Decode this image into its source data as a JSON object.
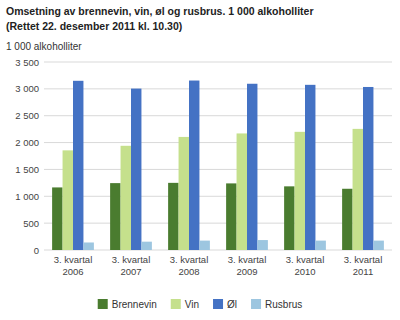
{
  "chart_data": {
    "type": "bar",
    "title": "Omsetning av brennevin, vin, øl og rusbrus. 1 000 alkoholliter",
    "subtitle": "(Rettet 22. desember 2011 kl. 10.30)",
    "ylabel": "1 000 alkoholliter",
    "categories": [
      "3. kvartal\n2006",
      "3. kvartal\n2007",
      "3. kvartal\n2008",
      "3. kvartal\n2009",
      "3. kvartal\n2010",
      "3. kvartal\n2011"
    ],
    "series": [
      {
        "name": "Brennevin",
        "color": "#4a7c2f",
        "values": [
          1165,
          1245,
          1250,
          1240,
          1185,
          1140
        ]
      },
      {
        "name": "Vin",
        "color": "#c5e08c",
        "values": [
          1855,
          1940,
          2105,
          2170,
          2200,
          2255
        ]
      },
      {
        "name": "Øl",
        "color": "#4472c4",
        "values": [
          3150,
          3005,
          3155,
          3095,
          3075,
          3035
        ]
      },
      {
        "name": "Rusbrus",
        "color": "#9dc6e0",
        "values": [
          140,
          155,
          175,
          185,
          175,
          175
        ]
      }
    ],
    "ylim": [
      0,
      3500
    ],
    "yticks": [
      0,
      500,
      {
        "value": 1000,
        "label": "1 000"
      },
      {
        "value": 1500,
        "label": "1 500"
      },
      {
        "value": 2000,
        "label": "2 000"
      },
      {
        "value": 2500,
        "label": "2 500"
      },
      {
        "value": 3000,
        "label": "3 000"
      },
      {
        "value": 3500,
        "label": "3 500"
      }
    ],
    "grid": true,
    "legend": "bottom"
  }
}
